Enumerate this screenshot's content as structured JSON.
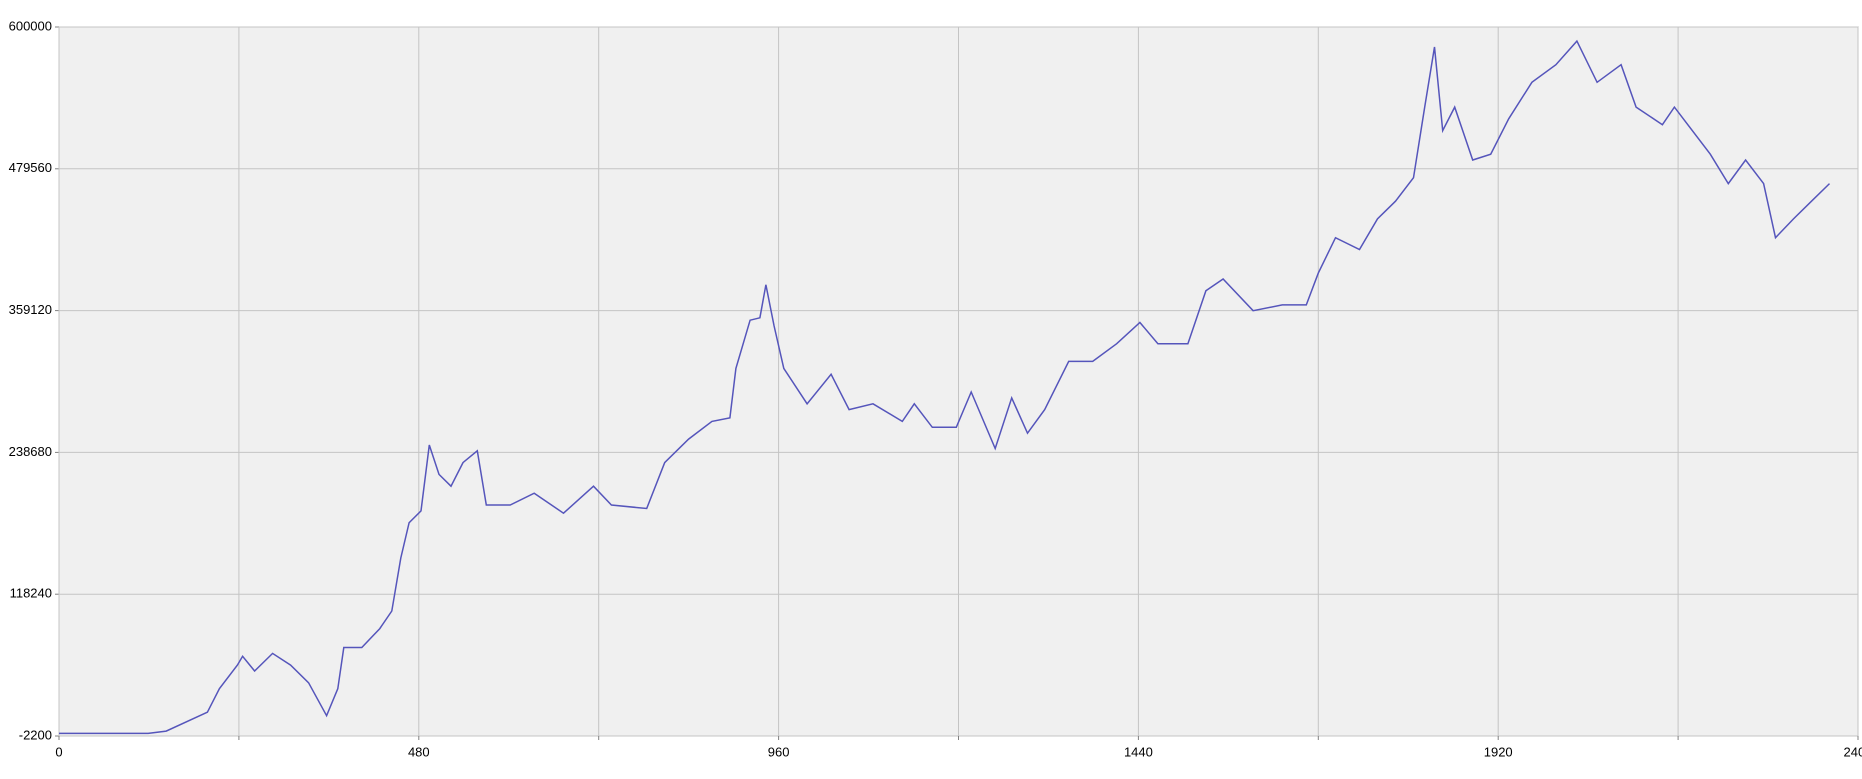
{
  "chart_data": {
    "type": "line",
    "xlim": [
      0,
      2400
    ],
    "xticks": [
      0,
      480,
      960,
      1440,
      1920,
      2400
    ],
    "xticks_minor": [
      240,
      720,
      1200,
      1680,
      2160
    ],
    "ylim": [
      -2200,
      600000
    ],
    "yticks": [
      -2200,
      118240,
      238680,
      359120,
      479560,
      600000
    ],
    "grid": true,
    "series": [
      {
        "color": "#5555bb",
        "x": [
          0,
          119,
          143,
          198,
          214,
          238,
          245,
          261,
          285,
          309,
          333,
          357,
          372,
          380,
          404,
          428,
          444,
          456,
          467,
          483,
          494,
          507,
          523,
          539,
          558,
          570,
          602,
          634,
          673,
          713,
          737,
          784,
          808,
          840,
          871,
          895,
          903,
          922,
          935,
          943,
          954,
          967,
          998,
          1030,
          1054,
          1086,
          1125,
          1141,
          1165,
          1197,
          1217,
          1249,
          1271,
          1292,
          1315,
          1347,
          1379,
          1411,
          1442,
          1466,
          1506,
          1530,
          1553,
          1593,
          1632,
          1664,
          1680,
          1703,
          1735,
          1759,
          1783,
          1807,
          1822,
          1835,
          1846,
          1862,
          1886,
          1910,
          1934,
          1965,
          1997,
          2025,
          2052,
          2084,
          2104,
          2139,
          2155,
          2203,
          2227,
          2250,
          2274,
          2290,
          2314,
          2338,
          2362
        ],
        "values": [
          0,
          0,
          2000,
          18000,
          38000,
          58000,
          65500,
          53000,
          68000,
          58000,
          43000,
          15000,
          38000,
          73000,
          73000,
          89000,
          104000,
          149000,
          179000,
          189000,
          245000,
          220000,
          210000,
          230000,
          240000,
          194000,
          194000,
          204000,
          187000,
          210000,
          194000,
          191000,
          230000,
          250000,
          265000,
          268000,
          310000,
          351000,
          353000,
          381000,
          346000,
          310000,
          280000,
          305000,
          275000,
          280000,
          265000,
          280000,
          260000,
          260000,
          290000,
          242000,
          285000,
          255000,
          275000,
          316000,
          316000,
          331000,
          349000,
          331000,
          331000,
          376000,
          386000,
          359000,
          364000,
          364000,
          391000,
          421000,
          411000,
          437000,
          452000,
          472000,
          532000,
          583000,
          512000,
          532000,
          487000,
          492000,
          522000,
          553000,
          568000,
          588000,
          553000,
          568000,
          532000,
          517000,
          532000,
          492000,
          467000,
          487000,
          467000,
          421000,
          437000,
          452000,
          467000
        ]
      }
    ]
  }
}
